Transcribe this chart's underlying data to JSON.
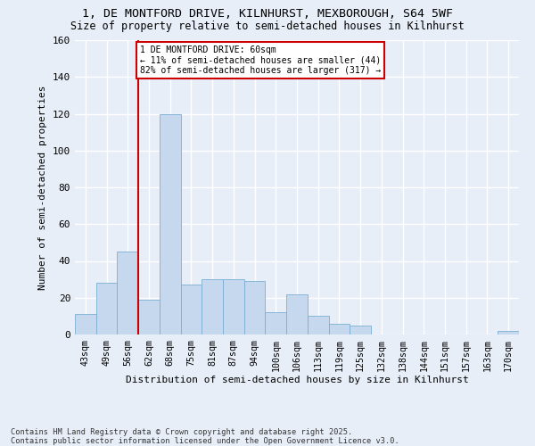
{
  "title_line1": "1, DE MONTFORD DRIVE, KILNHURST, MEXBOROUGH, S64 5WF",
  "title_line2": "Size of property relative to semi-detached houses in Kilnhurst",
  "xlabel": "Distribution of semi-detached houses by size in Kilnhurst",
  "ylabel": "Number of semi-detached properties",
  "categories": [
    "43sqm",
    "49sqm",
    "56sqm",
    "62sqm",
    "68sqm",
    "75sqm",
    "81sqm",
    "87sqm",
    "94sqm",
    "100sqm",
    "106sqm",
    "113sqm",
    "119sqm",
    "125sqm",
    "132sqm",
    "138sqm",
    "144sqm",
    "151sqm",
    "157sqm",
    "163sqm",
    "170sqm"
  ],
  "values": [
    11,
    28,
    45,
    19,
    120,
    27,
    30,
    30,
    29,
    12,
    22,
    10,
    6,
    5,
    0,
    0,
    0,
    0,
    0,
    0,
    2
  ],
  "bar_color": "#c5d8ee",
  "bar_edge_color": "#7aafd4",
  "red_line_index": 2.5,
  "annotation_title": "1 DE MONTFORD DRIVE: 60sqm",
  "annotation_line1": "← 11% of semi-detached houses are smaller (44)",
  "annotation_line2": "82% of semi-detached houses are larger (317) →",
  "footer_line1": "Contains HM Land Registry data © Crown copyright and database right 2025.",
  "footer_line2": "Contains public sector information licensed under the Open Government Licence v3.0.",
  "ylim": [
    0,
    160
  ],
  "yticks": [
    0,
    20,
    40,
    60,
    80,
    100,
    120,
    140,
    160
  ],
  "bg_color": "#e8eef8",
  "grid_color": "#ffffff",
  "red_color": "#cc0000"
}
